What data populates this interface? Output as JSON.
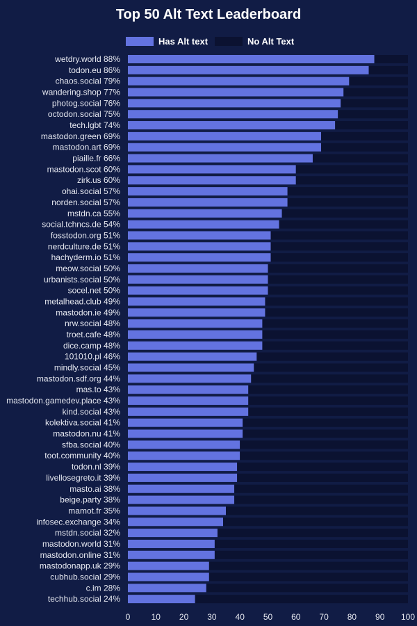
{
  "chart_data": {
    "type": "bar",
    "orientation": "horizontal",
    "stacked": true,
    "title": "Top 50 Alt Text Leaderboard",
    "legend": {
      "position": "top",
      "entries": [
        "Has Alt text",
        "No Alt Text"
      ]
    },
    "colors": {
      "has": "#6373e0",
      "no": "#0b1231",
      "background": "#111c45"
    },
    "xlim": [
      0,
      100
    ],
    "xticks": [
      0,
      10,
      20,
      30,
      40,
      50,
      60,
      70,
      80,
      90,
      100
    ],
    "categories": [
      "wetdry.world",
      "todon.eu",
      "chaos.social",
      "wandering.shop",
      "photog.social",
      "octodon.social",
      "tech.lgbt",
      "mastodon.green",
      "mastodon.art",
      "piaille.fr",
      "mastodon.scot",
      "zirk.us",
      "ohai.social",
      "norden.social",
      "mstdn.ca",
      "social.tchncs.de",
      "fosstodon.org",
      "nerdculture.de",
      "hachyderm.io",
      "meow.social",
      "urbanists.social",
      "socel.net",
      "metalhead.club",
      "mastodon.ie",
      "nrw.social",
      "troet.cafe",
      "dice.camp",
      "101010.pl",
      "mindly.social",
      "mastodon.sdf.org",
      "mas.to",
      "mastodon.gamedev.place",
      "kind.social",
      "kolektiva.social",
      "mastodon.nu",
      "sfba.social",
      "toot.community",
      "todon.nl",
      "livellosegreto.it",
      "masto.ai",
      "beige.party",
      "mamot.fr",
      "infosec.exchange",
      "mstdn.social",
      "mastodon.world",
      "mastodon.online",
      "mastodonapp.uk",
      "cubhub.social",
      "c.im",
      "techhub.social"
    ],
    "series": [
      {
        "name": "Has Alt text",
        "values": [
          88,
          86,
          79,
          77,
          76,
          75,
          74,
          69,
          69,
          66,
          60,
          60,
          57,
          57,
          55,
          54,
          51,
          51,
          51,
          50,
          50,
          50,
          49,
          49,
          48,
          48,
          48,
          46,
          45,
          44,
          43,
          43,
          43,
          41,
          41,
          40,
          40,
          39,
          39,
          38,
          38,
          35,
          34,
          32,
          31,
          31,
          29,
          29,
          28,
          24
        ]
      },
      {
        "name": "No Alt Text",
        "values": [
          12,
          14,
          21,
          23,
          24,
          25,
          26,
          31,
          31,
          34,
          40,
          40,
          43,
          43,
          45,
          46,
          49,
          49,
          49,
          50,
          50,
          50,
          51,
          51,
          52,
          52,
          52,
          54,
          55,
          56,
          57,
          57,
          57,
          59,
          59,
          60,
          60,
          61,
          61,
          62,
          62,
          65,
          66,
          68,
          69,
          69,
          71,
          71,
          72,
          76
        ]
      }
    ]
  }
}
